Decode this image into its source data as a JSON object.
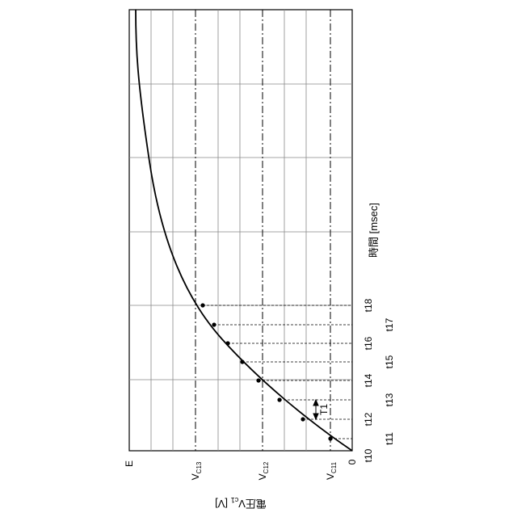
{
  "figure": {
    "x_axis": {
      "label": "時間 [msec]",
      "unit": "msec"
    },
    "y_axis": {
      "label": "電圧Vc1 [V]",
      "label_main": "電圧V",
      "label_sub": "c1",
      "label_unit": "[V]"
    },
    "y_ticks": [
      {
        "id": "zero",
        "text": "0",
        "main": "0",
        "sub": ""
      },
      {
        "id": "vc11",
        "text": "VC11",
        "main": "V",
        "sub": "C11"
      },
      {
        "id": "vc12",
        "text": "VC12",
        "main": "V",
        "sub": "C12"
      },
      {
        "id": "vc13",
        "text": "VC13",
        "main": "V",
        "sub": "C13"
      },
      {
        "id": "e",
        "text": "E",
        "main": "E",
        "sub": ""
      }
    ],
    "x_ticks": [
      "t10",
      "t11",
      "t12",
      "t13",
      "t14",
      "t15",
      "t16",
      "t17",
      "t18"
    ],
    "interval_label": "T1",
    "curve": "charging curve Vc1 = E(1 - e^(-t/τ))",
    "colors": {
      "line": "#000000",
      "grid": "#888888",
      "background": "#ffffff"
    }
  }
}
